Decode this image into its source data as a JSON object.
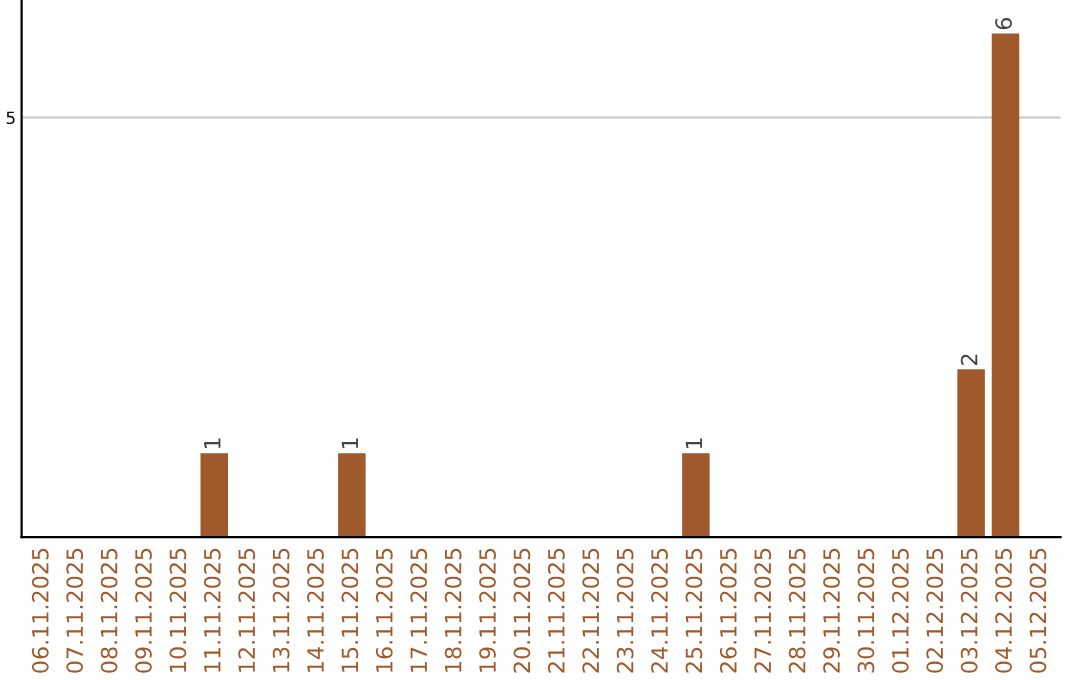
{
  "chart_data": {
    "type": "bar",
    "categories": [
      "06.11.2025",
      "07.11.2025",
      "08.11.2025",
      "09.11.2025",
      "10.11.2025",
      "11.11.2025",
      "12.11.2025",
      "13.11.2025",
      "14.11.2025",
      "15.11.2025",
      "16.11.2025",
      "17.11.2025",
      "18.11.2025",
      "19.11.2025",
      "20.11.2025",
      "21.11.2025",
      "22.11.2025",
      "23.11.2025",
      "24.11.2025",
      "25.11.2025",
      "26.11.2025",
      "27.11.2025",
      "28.11.2025",
      "29.11.2025",
      "30.11.2025",
      "01.12.2025",
      "02.12.2025",
      "03.12.2025",
      "04.12.2025",
      "05.12.2025"
    ],
    "values": [
      0,
      0,
      0,
      0,
      0,
      1,
      0,
      0,
      0,
      1,
      0,
      0,
      0,
      0,
      0,
      0,
      0,
      0,
      0,
      1,
      0,
      0,
      0,
      0,
      0,
      0,
      0,
      2,
      6,
      0
    ],
    "color": "#a0592b",
    "ylim": [
      0,
      6.4
    ],
    "yticks": [
      5
    ],
    "grid": "y",
    "value_labels": [
      null,
      null,
      null,
      null,
      null,
      "1",
      null,
      null,
      null,
      "1",
      null,
      null,
      null,
      null,
      null,
      null,
      null,
      null,
      null,
      "1",
      null,
      null,
      null,
      null,
      null,
      null,
      null,
      "2",
      "6",
      null
    ]
  }
}
